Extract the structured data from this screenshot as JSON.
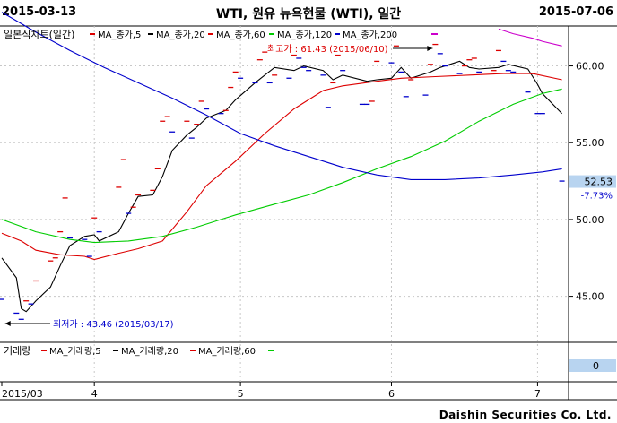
{
  "header": {
    "start_date": "2015-03-13",
    "end_date": "2015-07-06",
    "title": "WTI, 원유 뉴욕현물 (WTI), 일간"
  },
  "legend": {
    "main_label": "일본식차트(일간)",
    "ma5": "MA_종가,5",
    "ma20": "MA_종가,20",
    "ma60": "MA_종가,60",
    "ma120": "MA_종가,120",
    "ma200": "MA_종가,200"
  },
  "volume_legend": {
    "main_label": "거래량",
    "ma5": "MA_거래량,5",
    "ma20": "MA_거래량,20",
    "ma60": "MA_거래량,60"
  },
  "annotations": {
    "high_text": "최고가 : 61.43 (2015/06/10)",
    "low_text": "최저가 : 43.46 (2015/03/17)"
  },
  "price_badge": {
    "value": "52.53",
    "change": "-7.73%"
  },
  "volume_badge": "0",
  "footer": "Daishin Securities Co. Ltd.",
  "colors": {
    "price": "#0000cc",
    "ma5": "#000000",
    "ma20": "#dd0000",
    "ma60": "#00cc00",
    "ma120": "#0000cc",
    "ma200": "#cc00cc",
    "badge_bg": "#b8d4f0"
  },
  "chart_data": {
    "type": "line",
    "y_ticks": [
      45.0,
      50.0,
      55.0,
      60.0
    ],
    "y_tick_labels": [
      "45.00",
      "50.00",
      "55.00",
      "60.00"
    ],
    "ylim": [
      42.0,
      62.6
    ],
    "x_labels": [
      {
        "label": "2015/03",
        "date": "2015-03-13"
      },
      {
        "label": "4",
        "date": "2015-04-01"
      },
      {
        "label": "5",
        "date": "2015-05-01"
      },
      {
        "label": "6",
        "date": "2015-06-01"
      },
      {
        "label": "7",
        "date": "2015-07-01"
      }
    ],
    "xlim": [
      "2015-03-13",
      "2015-07-07"
    ],
    "grid": true,
    "series": [
      {
        "key": "close",
        "name": "",
        "points": [
          [
            "2015-03-13",
            44.8
          ],
          [
            "2015-03-16",
            43.9
          ],
          [
            "2015-03-17",
            43.5
          ],
          [
            "2015-03-18",
            44.7
          ],
          [
            "2015-03-19",
            44.5
          ],
          [
            "2015-03-20",
            46.0
          ],
          [
            "2015-03-23",
            47.3
          ],
          [
            "2015-03-24",
            47.5
          ],
          [
            "2015-03-25",
            49.2
          ],
          [
            "2015-03-26",
            51.4
          ],
          [
            "2015-03-27",
            48.8
          ],
          [
            "2015-03-30",
            48.7
          ],
          [
            "2015-03-31",
            47.6
          ],
          [
            "2015-04-01",
            50.1
          ],
          [
            "2015-04-02",
            49.2
          ],
          [
            "2015-04-06",
            52.1
          ],
          [
            "2015-04-07",
            53.9
          ],
          [
            "2015-04-08",
            50.4
          ],
          [
            "2015-04-09",
            50.8
          ],
          [
            "2015-04-10",
            51.6
          ],
          [
            "2015-04-13",
            51.9
          ],
          [
            "2015-04-14",
            53.3
          ],
          [
            "2015-04-15",
            56.4
          ],
          [
            "2015-04-16",
            56.7
          ],
          [
            "2015-04-17",
            55.7
          ],
          [
            "2015-04-20",
            56.4
          ],
          [
            "2015-04-21",
            55.3
          ],
          [
            "2015-04-22",
            56.2
          ],
          [
            "2015-04-23",
            57.7
          ],
          [
            "2015-04-24",
            57.2
          ],
          [
            "2015-04-27",
            56.9
          ],
          [
            "2015-04-28",
            57.1
          ],
          [
            "2015-04-29",
            58.6
          ],
          [
            "2015-04-30",
            59.6
          ],
          [
            "2015-05-01",
            59.2
          ],
          [
            "2015-05-04",
            58.9
          ],
          [
            "2015-05-05",
            60.4
          ],
          [
            "2015-05-06",
            60.9
          ],
          [
            "2015-05-07",
            58.9
          ],
          [
            "2015-05-08",
            59.4
          ],
          [
            "2015-05-11",
            59.2
          ],
          [
            "2015-05-12",
            60.7
          ],
          [
            "2015-05-13",
            60.5
          ],
          [
            "2015-05-14",
            59.9
          ],
          [
            "2015-05-15",
            59.7
          ],
          [
            "2015-05-18",
            59.4
          ],
          [
            "2015-05-19",
            57.3
          ],
          [
            "2015-05-20",
            58.9
          ],
          [
            "2015-05-21",
            60.7
          ],
          [
            "2015-05-22",
            59.7
          ],
          [
            "2015-05-26",
            57.5
          ],
          [
            "2015-05-27",
            57.5
          ],
          [
            "2015-05-28",
            57.7
          ],
          [
            "2015-05-29",
            60.3
          ],
          [
            "2015-06-01",
            60.2
          ],
          [
            "2015-06-02",
            61.3
          ],
          [
            "2015-06-03",
            59.6
          ],
          [
            "2015-06-04",
            58.0
          ],
          [
            "2015-06-05",
            59.1
          ],
          [
            "2015-06-08",
            58.1
          ],
          [
            "2015-06-09",
            60.1
          ],
          [
            "2015-06-10",
            61.4
          ],
          [
            "2015-06-11",
            60.8
          ],
          [
            "2015-06-12",
            60.0
          ],
          [
            "2015-06-15",
            59.5
          ],
          [
            "2015-06-16",
            60.0
          ],
          [
            "2015-06-17",
            60.4
          ],
          [
            "2015-06-18",
            60.5
          ],
          [
            "2015-06-19",
            59.6
          ],
          [
            "2015-06-22",
            59.7
          ],
          [
            "2015-06-23",
            61.0
          ],
          [
            "2015-06-24",
            60.3
          ],
          [
            "2015-06-25",
            59.7
          ],
          [
            "2015-06-26",
            59.6
          ],
          [
            "2015-06-29",
            58.3
          ],
          [
            "2015-06-30",
            59.5
          ],
          [
            "2015-07-01",
            56.9
          ],
          [
            "2015-07-02",
            56.9
          ],
          [
            "2015-07-06",
            52.5
          ]
        ]
      },
      {
        "key": "ma5",
        "name": "MA_종가,5",
        "points": [
          [
            "2015-03-13",
            47.5
          ],
          [
            "2015-03-16",
            46.2
          ],
          [
            "2015-03-17",
            44.2
          ],
          [
            "2015-03-18",
            44.0
          ],
          [
            "2015-03-20",
            44.7
          ],
          [
            "2015-03-23",
            45.6
          ],
          [
            "2015-03-25",
            47.0
          ],
          [
            "2015-03-27",
            48.3
          ],
          [
            "2015-03-30",
            48.9
          ],
          [
            "2015-04-01",
            49.0
          ],
          [
            "2015-04-02",
            48.6
          ],
          [
            "2015-04-06",
            49.2
          ],
          [
            "2015-04-08",
            50.4
          ],
          [
            "2015-04-10",
            51.5
          ],
          [
            "2015-04-13",
            51.6
          ],
          [
            "2015-04-15",
            52.8
          ],
          [
            "2015-04-17",
            54.5
          ],
          [
            "2015-04-20",
            55.5
          ],
          [
            "2015-04-22",
            56.0
          ],
          [
            "2015-04-24",
            56.6
          ],
          [
            "2015-04-28",
            57.1
          ],
          [
            "2015-04-30",
            57.8
          ],
          [
            "2015-05-04",
            58.9
          ],
          [
            "2015-05-06",
            59.4
          ],
          [
            "2015-05-08",
            59.9
          ],
          [
            "2015-05-12",
            59.7
          ],
          [
            "2015-05-14",
            60.0
          ],
          [
            "2015-05-18",
            59.7
          ],
          [
            "2015-05-20",
            59.1
          ],
          [
            "2015-05-22",
            59.4
          ],
          [
            "2015-05-27",
            59.0
          ],
          [
            "2015-05-29",
            59.1
          ],
          [
            "2015-06-01",
            59.2
          ],
          [
            "2015-06-03",
            59.9
          ],
          [
            "2015-06-05",
            59.2
          ],
          [
            "2015-06-09",
            59.6
          ],
          [
            "2015-06-11",
            59.9
          ],
          [
            "2015-06-15",
            60.3
          ],
          [
            "2015-06-17",
            59.9
          ],
          [
            "2015-06-19",
            59.8
          ],
          [
            "2015-06-23",
            59.9
          ],
          [
            "2015-06-25",
            60.1
          ],
          [
            "2015-06-29",
            59.8
          ],
          [
            "2015-07-01",
            58.8
          ],
          [
            "2015-07-02",
            58.2
          ],
          [
            "2015-07-06",
            56.9
          ]
        ]
      },
      {
        "key": "ma20",
        "name": "MA_종가,20",
        "points": [
          [
            "2015-03-13",
            49.1
          ],
          [
            "2015-03-17",
            48.6
          ],
          [
            "2015-03-20",
            48.0
          ],
          [
            "2015-03-25",
            47.7
          ],
          [
            "2015-03-30",
            47.6
          ],
          [
            "2015-04-01",
            47.4
          ],
          [
            "2015-04-06",
            47.8
          ],
          [
            "2015-04-10",
            48.1
          ],
          [
            "2015-04-15",
            48.6
          ],
          [
            "2015-04-20",
            50.5
          ],
          [
            "2015-04-24",
            52.2
          ],
          [
            "2015-04-30",
            53.8
          ],
          [
            "2015-05-06",
            55.6
          ],
          [
            "2015-05-12",
            57.2
          ],
          [
            "2015-05-18",
            58.4
          ],
          [
            "2015-05-22",
            58.7
          ],
          [
            "2015-05-29",
            59.0
          ],
          [
            "2015-06-03",
            59.2
          ],
          [
            "2015-06-10",
            59.3
          ],
          [
            "2015-06-17",
            59.4
          ],
          [
            "2015-06-24",
            59.5
          ],
          [
            "2015-06-30",
            59.5
          ],
          [
            "2015-07-06",
            59.1
          ]
        ]
      },
      {
        "key": "ma60",
        "name": "MA_종가,60",
        "points": [
          [
            "2015-03-13",
            50.0
          ],
          [
            "2015-03-20",
            49.2
          ],
          [
            "2015-03-27",
            48.7
          ],
          [
            "2015-04-01",
            48.5
          ],
          [
            "2015-04-08",
            48.6
          ],
          [
            "2015-04-15",
            48.9
          ],
          [
            "2015-04-22",
            49.5
          ],
          [
            "2015-04-30",
            50.3
          ],
          [
            "2015-05-08",
            51.0
          ],
          [
            "2015-05-15",
            51.6
          ],
          [
            "2015-05-22",
            52.4
          ],
          [
            "2015-05-29",
            53.3
          ],
          [
            "2015-06-05",
            54.1
          ],
          [
            "2015-06-12",
            55.1
          ],
          [
            "2015-06-19",
            56.4
          ],
          [
            "2015-06-26",
            57.5
          ],
          [
            "2015-07-02",
            58.2
          ],
          [
            "2015-07-06",
            58.5
          ]
        ]
      },
      {
        "key": "ma120",
        "name": "MA_종가,120",
        "points": [
          [
            "2015-03-13",
            63.5
          ],
          [
            "2015-03-20",
            62.2
          ],
          [
            "2015-03-27",
            61.0
          ],
          [
            "2015-04-03",
            59.9
          ],
          [
            "2015-04-10",
            58.9
          ],
          [
            "2015-04-17",
            57.9
          ],
          [
            "2015-04-24",
            56.8
          ],
          [
            "2015-05-01",
            55.6
          ],
          [
            "2015-05-08",
            54.8
          ],
          [
            "2015-05-15",
            54.1
          ],
          [
            "2015-05-22",
            53.4
          ],
          [
            "2015-05-29",
            52.9
          ],
          [
            "2015-06-05",
            52.6
          ],
          [
            "2015-06-12",
            52.6
          ],
          [
            "2015-06-19",
            52.7
          ],
          [
            "2015-06-26",
            52.9
          ],
          [
            "2015-07-02",
            53.1
          ],
          [
            "2015-07-06",
            53.3
          ]
        ]
      },
      {
        "key": "ma200",
        "name": "MA_종가,200",
        "points": [
          [
            "2015-06-23",
            62.4
          ],
          [
            "2015-06-26",
            62.1
          ],
          [
            "2015-06-30",
            61.8
          ],
          [
            "2015-07-02",
            61.6
          ],
          [
            "2015-07-06",
            61.3
          ]
        ]
      }
    ],
    "annotations": [
      {
        "text": "최고가 : 61.43 (2015/06/10)",
        "date": "2015-06-10",
        "value": 61.43
      },
      {
        "text": "최저가 : 43.46 (2015/03/17)",
        "date": "2015-03-17",
        "value": 43.46
      }
    ],
    "last_value": 52.53,
    "last_change": "-7.73%"
  }
}
